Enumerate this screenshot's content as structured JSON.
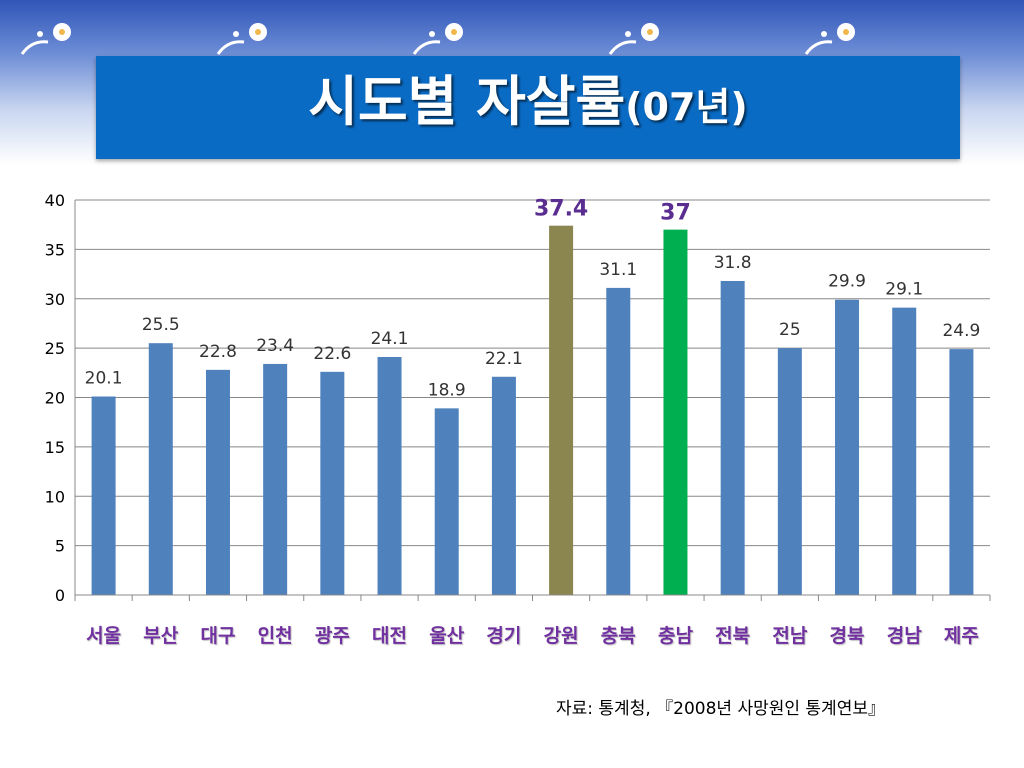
{
  "slide": {
    "title_main": "시도별 자살률",
    "title_sub": "(07년)",
    "source": "자료: 통계청, 『2008년 사망원인 통계연보』"
  },
  "chart_data": {
    "type": "bar",
    "title": "시도별 자살률(07년)",
    "xlabel": "",
    "ylabel": "",
    "ylim": [
      0,
      40
    ],
    "yticks": [
      0,
      5,
      10,
      15,
      20,
      25,
      30,
      35,
      40
    ],
    "grid": true,
    "categories": [
      "서울",
      "부산",
      "대구",
      "인천",
      "광주",
      "대전",
      "울산",
      "경기",
      "강원",
      "충북",
      "충남",
      "전북",
      "전남",
      "경북",
      "경남",
      "제주"
    ],
    "values": [
      20.1,
      25.5,
      22.8,
      23.4,
      22.6,
      24.1,
      18.9,
      22.1,
      37.4,
      31.1,
      37,
      31.8,
      25,
      29.9,
      29.1,
      24.9
    ],
    "labels": [
      "20.1",
      "25.5",
      "22.8",
      "23.4",
      "22.6",
      "24.1",
      "18.9",
      "22.1",
      "37.4",
      "31.1",
      "37",
      "31.8",
      "25",
      "29.9",
      "29.1",
      "24.9"
    ],
    "colors": {
      "default_bar": "#4f81bd",
      "강원": "#8b8650",
      "충남": "#00b050",
      "highlight_label": "#5a2d91",
      "category_label": "#7030a0",
      "axis_text": "#000000",
      "grid": "#888888"
    },
    "highlighted": [
      "강원",
      "충남"
    ]
  }
}
